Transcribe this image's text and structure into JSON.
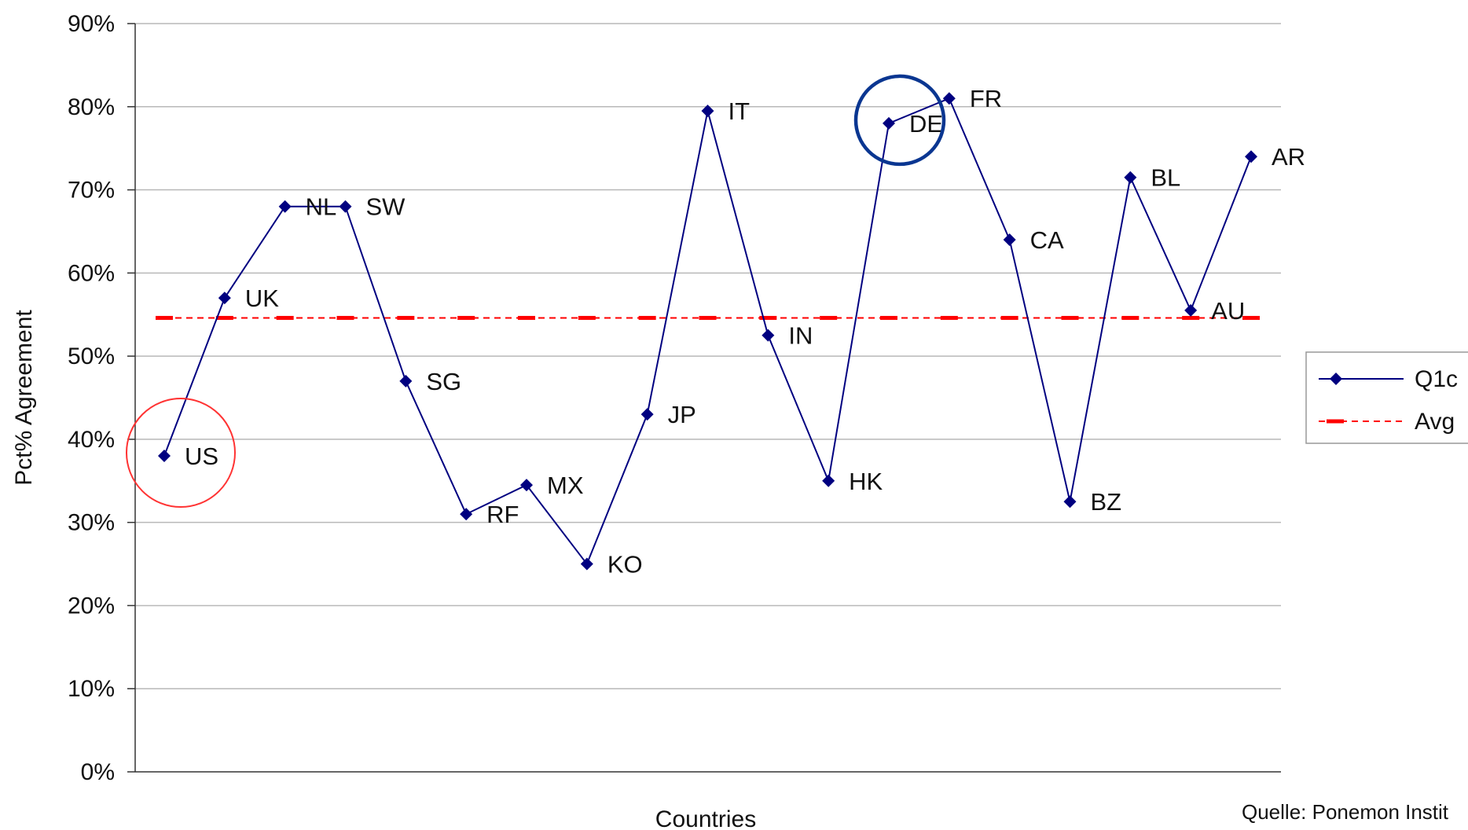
{
  "chart_data": {
    "type": "line",
    "xlabel": "Countries",
    "ylabel": "Pct% Agreement",
    "ylim": [
      0,
      0.9
    ],
    "yticks": [
      "0%",
      "10%",
      "20%",
      "30%",
      "40%",
      "50%",
      "60%",
      "70%",
      "80%",
      "90%"
    ],
    "ytick_values": [
      0,
      0.1,
      0.2,
      0.3,
      0.4,
      0.5,
      0.6,
      0.7,
      0.8,
      0.9
    ],
    "grid": true,
    "legend_position": "right",
    "categories": [
      "US",
      "UK",
      "NL",
      "SW",
      "SG",
      "RF",
      "MX",
      "KO",
      "JP",
      "IT",
      "IN",
      "HK",
      "DE",
      "FR",
      "CA",
      "BZ",
      "BL",
      "AU",
      "AR"
    ],
    "series": [
      {
        "name": "Q1c",
        "color": "#000080",
        "marker": "diamond",
        "values": [
          0.38,
          0.57,
          0.68,
          0.68,
          0.47,
          0.31,
          0.345,
          0.25,
          0.43,
          0.795,
          0.525,
          0.35,
          0.78,
          0.81,
          0.64,
          0.325,
          0.715,
          0.555,
          0.74
        ]
      },
      {
        "name": "Avg",
        "color": "#ff0000",
        "style": "dashed",
        "values": [
          0.546,
          0.546,
          0.546,
          0.546,
          0.546,
          0.546,
          0.546,
          0.546,
          0.546,
          0.546,
          0.546,
          0.546,
          0.546,
          0.546,
          0.546,
          0.546,
          0.546,
          0.546,
          0.546
        ]
      }
    ],
    "highlights": [
      {
        "category": "US",
        "color": "#ff3333"
      },
      {
        "category": "DE",
        "color": "#0a3691"
      }
    ],
    "source_note": "Quelle: Ponemon Instit"
  }
}
